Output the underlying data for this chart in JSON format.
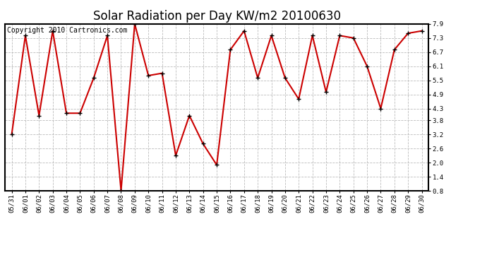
{
  "title": "Solar Radiation per Day KW/m2 20100630",
  "copyright": "Copyright 2010 Cartronics.com",
  "dates": [
    "05/31",
    "06/01",
    "06/02",
    "06/03",
    "06/04",
    "06/05",
    "06/06",
    "06/07",
    "06/08",
    "06/09",
    "06/10",
    "06/11",
    "06/12",
    "06/13",
    "06/14",
    "06/15",
    "06/16",
    "06/17",
    "06/18",
    "06/19",
    "06/20",
    "06/21",
    "06/22",
    "06/23",
    "06/24",
    "06/25",
    "06/26",
    "06/27",
    "06/28",
    "06/29",
    "06/30"
  ],
  "values": [
    3.2,
    7.4,
    4.0,
    7.6,
    4.1,
    4.1,
    5.6,
    7.4,
    0.8,
    7.9,
    5.7,
    5.8,
    2.3,
    4.0,
    2.8,
    1.9,
    6.8,
    7.6,
    5.6,
    7.4,
    5.6,
    4.7,
    7.4,
    5.0,
    7.4,
    7.3,
    6.1,
    4.3,
    6.8,
    7.5,
    7.6
  ],
  "ylim": [
    0.8,
    7.9
  ],
  "yticks": [
    0.8,
    1.4,
    2.0,
    2.6,
    3.2,
    3.8,
    4.3,
    4.9,
    5.5,
    6.1,
    6.7,
    7.3,
    7.9
  ],
  "line_color": "#cc0000",
  "marker_color": "#000000",
  "bg_color": "#ffffff",
  "grid_color": "#bbbbbb",
  "title_fontsize": 12,
  "copyright_fontsize": 7,
  "tick_fontsize": 6.5
}
